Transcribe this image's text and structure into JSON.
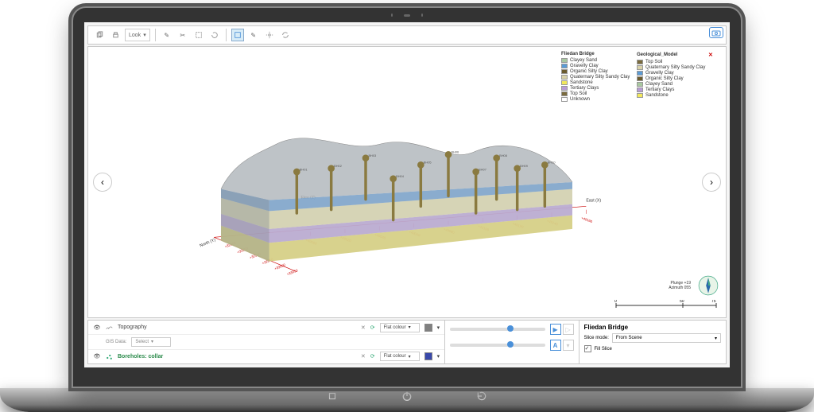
{
  "toolbar": {
    "look_label": "Look",
    "camera_tooltip": "Screenshot"
  },
  "nav": {
    "prev": "‹",
    "next": "›"
  },
  "legend_a": {
    "title": "Fliedan Bridge",
    "items": [
      {
        "label": "Clayey Sand",
        "color": "#a8c8a0"
      },
      {
        "label": "Gravelly Clay",
        "color": "#5b9bd5"
      },
      {
        "label": "Organic Silty Clay",
        "color": "#6b5b2e"
      },
      {
        "label": "Quaternary Silty Sandy Clay",
        "color": "#d9d2a8"
      },
      {
        "label": "Sandstone",
        "color": "#f2e85c"
      },
      {
        "label": "Tertiary Clays",
        "color": "#b89bd6"
      },
      {
        "label": "Top Soil",
        "color": "#7a6b3e"
      },
      {
        "label": "Unknown",
        "color": "#ffffff"
      }
    ]
  },
  "legend_b": {
    "title": "Geological_Model",
    "items": [
      {
        "label": "Top Soil",
        "color": "#7a6b3e"
      },
      {
        "label": "Quaternary Silty Sandy Clay",
        "color": "#d9d2a8"
      },
      {
        "label": "Gravelly Clay",
        "color": "#5b9bd5"
      },
      {
        "label": "Organic Silty Clay",
        "color": "#6b5b2e"
      },
      {
        "label": "Clayey Sand",
        "color": "#a8c8a0"
      },
      {
        "label": "Tertiary Clays",
        "color": "#b89bd6"
      },
      {
        "label": "Sandstone",
        "color": "#f2e85c"
      }
    ]
  },
  "axes": {
    "north_label": "North (Y)",
    "east_label": "East (X)",
    "elev_label": "Elev (Z)",
    "north_ticks": [
      "+32800",
      "+32850",
      "+32900",
      "+32950",
      "+33000",
      "+33050"
    ],
    "east_ticks": [
      "+49000",
      "+49020",
      "+49040",
      "+49060",
      "+49080",
      "+49100",
      "+49120",
      "+49140",
      "+49160"
    ],
    "elev_ticks": [
      "+30",
      "+20",
      "+10",
      "0",
      "-10"
    ]
  },
  "info": {
    "line1": "Plunge +19",
    "line2": "Azimuth 055"
  },
  "scalebar": {
    "t0": "0",
    "t1": "50",
    "t2": "75"
  },
  "model": {
    "surface_color": "#b0b6bb",
    "surface_color2": "#9aa2a8",
    "blue_layer": "#7aa8d8",
    "sand_layer": "#e8e2b5",
    "purple_layer": "#c5aee0",
    "yellow_layer": "#ece079",
    "boreholes": [
      {
        "label": "BH01"
      },
      {
        "label": "BH02"
      },
      {
        "label": "BH03"
      },
      {
        "label": "BH04"
      },
      {
        "label": "BH05"
      },
      {
        "label": "BH06"
      },
      {
        "label": "BH07"
      },
      {
        "label": "BH08"
      },
      {
        "label": "BH09"
      },
      {
        "label": "BH10"
      }
    ]
  },
  "bottom": {
    "gis_label": "GIS Data:",
    "gis_value": "Select",
    "row1": {
      "name": "Topography",
      "mode": "Flat colour",
      "color": "#808080"
    },
    "row2": {
      "name": "Boreholes: collar",
      "mode": "Flat colour",
      "color": "#3949ab"
    },
    "right_title": "Fliedan Bridge",
    "slice_label": "Slice mode:",
    "slice_value": "From Scene",
    "fill_label": "Fill Slice"
  }
}
